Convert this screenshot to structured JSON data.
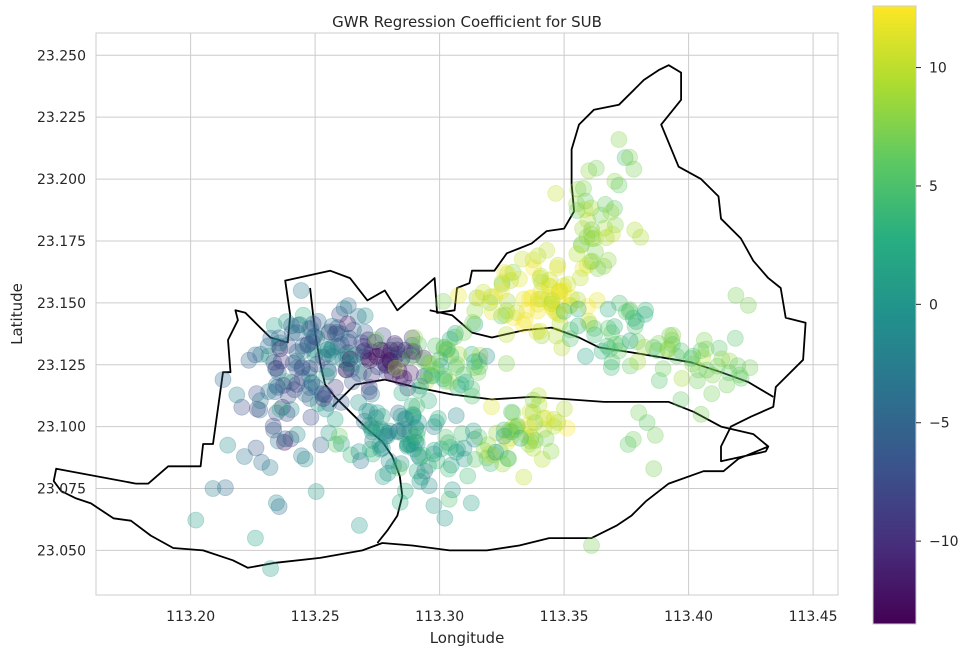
{
  "chart_data": {
    "type": "scatter",
    "title": "GWR Regression Coefficient for SUB",
    "xlabel": "Longitude",
    "ylabel": "Latitude",
    "xlim": [
      113.162,
      113.46
    ],
    "ylim": [
      23.032,
      23.259
    ],
    "xticks": [
      113.2,
      113.25,
      113.3,
      113.35,
      113.4,
      113.45
    ],
    "xtick_labels": [
      "113.20",
      "113.25",
      "113.30",
      "113.35",
      "113.40",
      "113.45"
    ],
    "yticks": [
      23.05,
      23.075,
      23.1,
      23.125,
      23.15,
      23.175,
      23.2,
      23.225,
      23.25
    ],
    "ytick_labels": [
      "23.050",
      "23.075",
      "23.100",
      "23.125",
      "23.150",
      "23.175",
      "23.200",
      "23.225",
      "23.250"
    ],
    "grid": true,
    "colormap": "viridis",
    "colorbar": {
      "range": [
        -13.5,
        12.6
      ],
      "ticks": [
        -10,
        -5,
        0,
        5,
        10
      ],
      "tick_labels": [
        "−10",
        "−5",
        "0",
        "5",
        "10"
      ]
    },
    "point_alpha": 0.3,
    "boundary_color": "#000000",
    "outer_boundary": [
      [
        113.178,
        23.077
      ],
      [
        113.183,
        23.077
      ],
      [
        113.191,
        23.084
      ],
      [
        113.204,
        23.084
      ],
      [
        113.205,
        23.093
      ],
      [
        113.209,
        23.093
      ],
      [
        113.213,
        23.122
      ],
      [
        113.216,
        23.122
      ],
      [
        113.215,
        23.135
      ],
      [
        113.219,
        23.143
      ],
      [
        113.218,
        23.147
      ],
      [
        113.222,
        23.146
      ],
      [
        113.232,
        23.136
      ],
      [
        113.239,
        23.134
      ],
      [
        113.24,
        23.145
      ],
      [
        113.238,
        23.159
      ],
      [
        113.256,
        23.163
      ],
      [
        113.264,
        23.16
      ],
      [
        113.271,
        23.151
      ],
      [
        113.278,
        23.155
      ],
      [
        113.283,
        23.147
      ],
      [
        113.29,
        23.153
      ],
      [
        113.298,
        23.16
      ],
      [
        113.299,
        23.146
      ],
      [
        113.306,
        23.147
      ],
      [
        113.307,
        23.156
      ],
      [
        113.312,
        23.158
      ],
      [
        113.313,
        23.163
      ],
      [
        113.322,
        23.163
      ],
      [
        113.327,
        23.17
      ],
      [
        113.332,
        23.172
      ],
      [
        113.337,
        23.174
      ],
      [
        113.343,
        23.179
      ],
      [
        113.35,
        23.18
      ],
      [
        113.354,
        23.187
      ],
      [
        113.353,
        23.198
      ],
      [
        113.353,
        23.212
      ],
      [
        113.356,
        23.222
      ],
      [
        113.362,
        23.228
      ],
      [
        113.372,
        23.23
      ],
      [
        113.379,
        23.237
      ],
      [
        113.382,
        23.24
      ],
      [
        113.388,
        23.244
      ],
      [
        113.392,
        23.246
      ],
      [
        113.397,
        23.243
      ],
      [
        113.397,
        23.232
      ],
      [
        113.389,
        23.222
      ],
      [
        113.396,
        23.205
      ],
      [
        113.405,
        23.2
      ],
      [
        113.412,
        23.193
      ],
      [
        113.413,
        23.184
      ],
      [
        113.421,
        23.176
      ],
      [
        113.426,
        23.167
      ],
      [
        113.432,
        23.16
      ],
      [
        113.437,
        23.156
      ],
      [
        113.439,
        23.144
      ],
      [
        113.447,
        23.142
      ],
      [
        113.446,
        23.127
      ],
      [
        113.435,
        23.116
      ],
      [
        113.434,
        23.108
      ],
      [
        113.425,
        23.104
      ],
      [
        113.417,
        23.1
      ],
      [
        113.413,
        23.092
      ],
      [
        113.413,
        23.086
      ],
      [
        113.431,
        23.09
      ],
      [
        113.432,
        23.092
      ],
      [
        113.42,
        23.087
      ],
      [
        113.414,
        23.082
      ],
      [
        113.406,
        23.082
      ],
      [
        113.392,
        23.077
      ],
      [
        113.383,
        23.07
      ],
      [
        113.377,
        23.064
      ],
      [
        113.371,
        23.06
      ],
      [
        113.361,
        23.055
      ],
      [
        113.344,
        23.055
      ],
      [
        113.332,
        23.052
      ],
      [
        113.319,
        23.05
      ],
      [
        113.304,
        23.05
      ],
      [
        113.289,
        23.052
      ],
      [
        113.277,
        23.053
      ],
      [
        113.269,
        23.05
      ],
      [
        113.252,
        23.047
      ],
      [
        113.234,
        23.045
      ],
      [
        113.223,
        23.043
      ],
      [
        113.217,
        23.046
      ],
      [
        113.205,
        23.05
      ],
      [
        113.193,
        23.051
      ],
      [
        113.184,
        23.056
      ],
      [
        113.176,
        23.062
      ],
      [
        113.169,
        23.063
      ],
      [
        113.16,
        23.069
      ],
      [
        113.154,
        23.071
      ],
      [
        113.148,
        23.074
      ],
      [
        113.145,
        23.078
      ],
      [
        113.146,
        23.083
      ],
      [
        113.178,
        23.077
      ]
    ],
    "inner_boundaries": [
      [
        [
          113.248,
          23.156
        ],
        [
          113.25,
          23.138
        ],
        [
          113.252,
          23.126
        ],
        [
          113.254,
          23.117
        ],
        [
          113.258,
          23.112
        ],
        [
          113.262,
          23.108
        ],
        [
          113.266,
          23.104
        ],
        [
          113.271,
          23.099
        ],
        [
          113.277,
          23.094
        ],
        [
          113.281,
          23.088
        ],
        [
          113.284,
          23.08
        ],
        [
          113.285,
          23.072
        ],
        [
          113.283,
          23.064
        ],
        [
          113.279,
          23.058
        ],
        [
          113.275,
          23.053
        ]
      ],
      [
        [
          113.257,
          23.108
        ],
        [
          113.266,
          23.117
        ],
        [
          113.278,
          23.119
        ],
        [
          113.29,
          23.116
        ],
        [
          113.305,
          23.113
        ],
        [
          113.321,
          23.111
        ],
        [
          113.337,
          23.112
        ],
        [
          113.352,
          23.111
        ],
        [
          113.366,
          23.11
        ],
        [
          113.38,
          23.11
        ],
        [
          113.392,
          23.11
        ],
        [
          113.402,
          23.106
        ],
        [
          113.413,
          23.1
        ],
        [
          113.426,
          23.097
        ],
        [
          113.432,
          23.092
        ]
      ],
      [
        [
          113.296,
          23.147
        ],
        [
          113.305,
          23.145
        ],
        [
          113.313,
          23.138
        ],
        [
          113.321,
          23.136
        ],
        [
          113.334,
          23.139
        ],
        [
          113.345,
          23.14
        ],
        [
          113.356,
          23.136
        ],
        [
          113.364,
          23.132
        ],
        [
          113.377,
          23.13
        ],
        [
          113.389,
          23.128
        ],
        [
          113.401,
          23.126
        ],
        [
          113.413,
          23.122
        ],
        [
          113.424,
          23.118
        ],
        [
          113.434,
          23.112
        ]
      ]
    ],
    "clusters": [
      {
        "center": [
          113.252,
          23.13
        ],
        "spread": [
          0.012,
          0.01
        ],
        "n": 90,
        "value": -3.5,
        "spread_value": 3.0
      },
      {
        "center": [
          113.28,
          23.128
        ],
        "spread": [
          0.008,
          0.006
        ],
        "n": 45,
        "value": -11.0,
        "spread_value": 2.5
      },
      {
        "center": [
          113.245,
          23.115
        ],
        "spread": [
          0.012,
          0.01
        ],
        "n": 40,
        "value": -7.0,
        "spread_value": 2.5
      },
      {
        "center": [
          113.236,
          23.09
        ],
        "spread": [
          0.01,
          0.018
        ],
        "n": 22,
        "value": -3.0,
        "spread_value": 2.5
      },
      {
        "center": [
          113.278,
          23.098
        ],
        "spread": [
          0.011,
          0.008
        ],
        "n": 70,
        "value": 0.0,
        "spread_value": 3.0
      },
      {
        "center": [
          113.295,
          23.083
        ],
        "spread": [
          0.012,
          0.009
        ],
        "n": 30,
        "value": 2.0,
        "spread_value": 2.0
      },
      {
        "center": [
          113.303,
          23.128
        ],
        "spread": [
          0.01,
          0.007
        ],
        "n": 50,
        "value": 5.5,
        "spread_value": 2.5
      },
      {
        "center": [
          113.32,
          23.15
        ],
        "spread": [
          0.008,
          0.007
        ],
        "n": 22,
        "value": 8.5,
        "spread_value": 2.0
      },
      {
        "center": [
          113.343,
          23.152
        ],
        "spread": [
          0.01,
          0.009
        ],
        "n": 60,
        "value": 11.0,
        "spread_value": 1.5
      },
      {
        "center": [
          113.334,
          23.1
        ],
        "spread": [
          0.01,
          0.007
        ],
        "n": 40,
        "value": 9.5,
        "spread_value": 2.0
      },
      {
        "center": [
          113.318,
          23.098
        ],
        "spread": [
          0.01,
          0.008
        ],
        "n": 22,
        "value": 3.5,
        "spread_value": 2.0
      },
      {
        "center": [
          113.362,
          23.175
        ],
        "spread": [
          0.008,
          0.012
        ],
        "n": 30,
        "value": 7.5,
        "spread_value": 1.5
      },
      {
        "center": [
          113.367,
          23.2
        ],
        "spread": [
          0.005,
          0.008
        ],
        "n": 10,
        "value": 6.5,
        "spread_value": 1.0
      },
      {
        "center": [
          113.37,
          23.136
        ],
        "spread": [
          0.009,
          0.008
        ],
        "n": 35,
        "value": 4.5,
        "spread_value": 1.5
      },
      {
        "center": [
          113.395,
          23.132
        ],
        "spread": [
          0.01,
          0.006
        ],
        "n": 22,
        "value": 6.5,
        "spread_value": 1.5
      },
      {
        "center": [
          113.413,
          23.122
        ],
        "spread": [
          0.007,
          0.006
        ],
        "n": 14,
        "value": 6.5,
        "spread_value": 1.0
      },
      {
        "center": [
          113.386,
          23.1
        ],
        "spread": [
          0.01,
          0.008
        ],
        "n": 6,
        "value": 7.0,
        "spread_value": 1.0
      }
    ],
    "extra_points": [
      [
        113.226,
        23.055,
        1.5
      ],
      [
        113.361,
        23.052,
        7.0
      ],
      [
        113.386,
        23.083,
        7.0
      ],
      [
        113.209,
        23.075,
        -3.0
      ],
      [
        113.419,
        23.153,
        7.0
      ],
      [
        113.424,
        23.149,
        7.0
      ],
      [
        113.372,
        23.216,
        7.5
      ],
      [
        113.378,
        23.204,
        7.0
      ],
      [
        113.355,
        23.19,
        8.0
      ],
      [
        113.405,
        23.105,
        7.0
      ],
      [
        113.226,
        23.129,
        -5.0
      ],
      [
        113.213,
        23.119,
        -4.5
      ]
    ]
  }
}
